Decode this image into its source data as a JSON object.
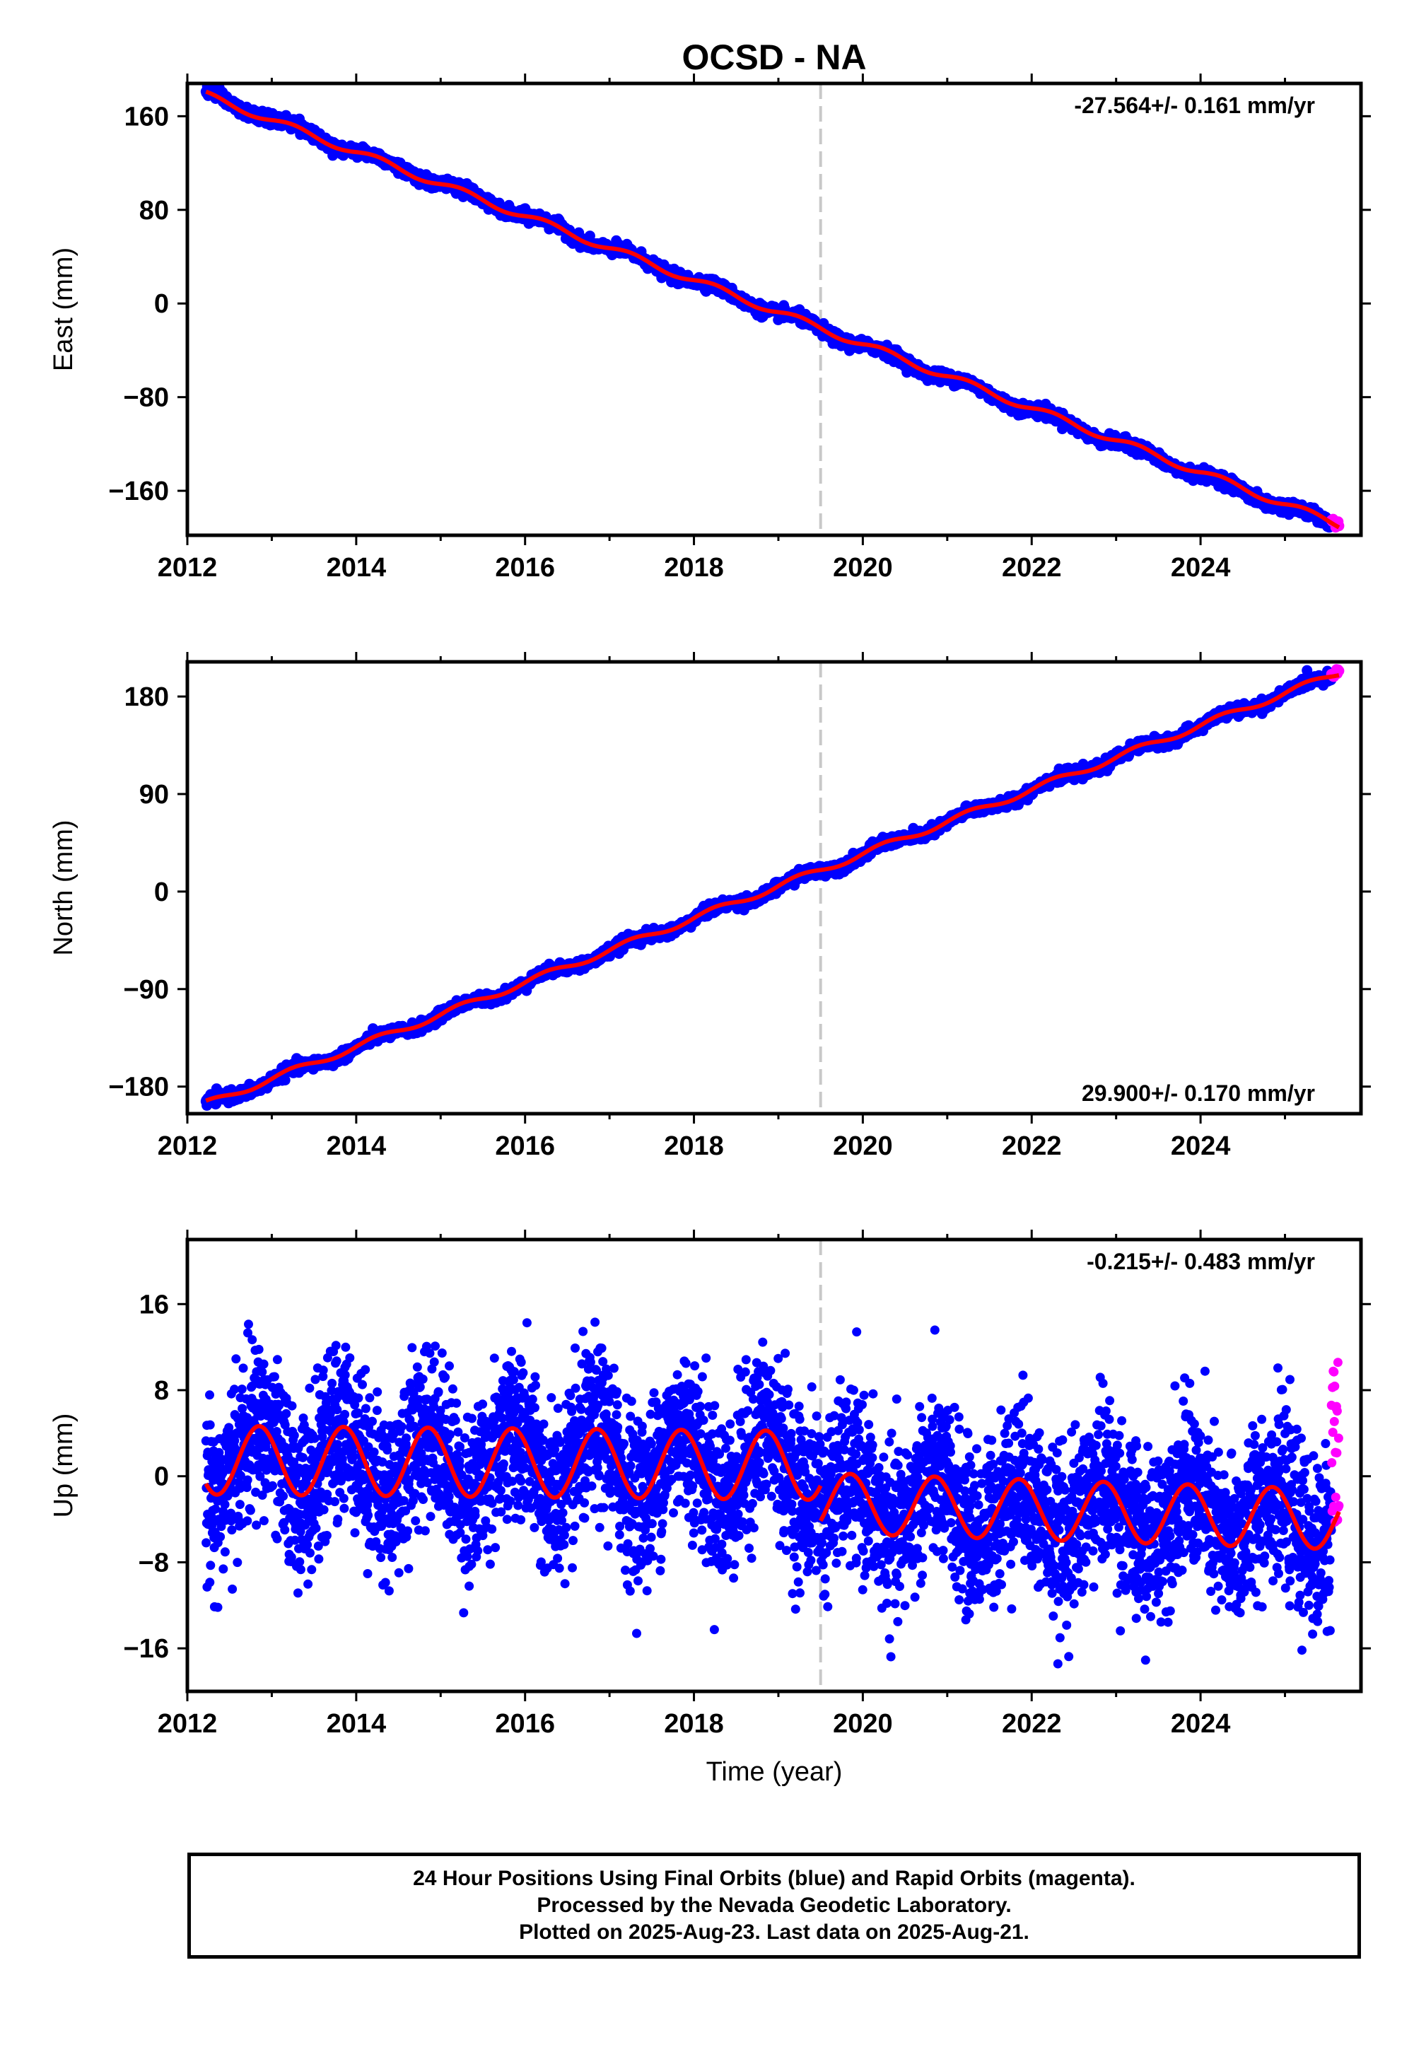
{
  "figure": {
    "title": "OCSD - NA",
    "xlabel": "Time (year)",
    "x_ticks": [
      "2012",
      "2014",
      "2016",
      "2018",
      "2020",
      "2022",
      "2024"
    ]
  },
  "colors": {
    "final_orbits": "#0000ff",
    "rapid_orbits": "#ff00ff",
    "model_fit": "#ff0000",
    "event_line": "#c8c8c8"
  },
  "caption": {
    "line1": "24 Hour Positions Using Final Orbits (blue) and Rapid Orbits (magenta).",
    "line2": "Processed by the Nevada Geodetic Laboratory.",
    "line3": "Plotted on 2025-Aug-23. Last data on 2025-Aug-21."
  },
  "chart_data": [
    {
      "type": "scatter",
      "title": "OCSD - NA",
      "ylabel": "East (mm)",
      "xlabel": "",
      "xlim": [
        2012.0,
        2025.9
      ],
      "ylim": [
        -198,
        188
      ],
      "y_ticks": [
        160,
        80,
        0,
        -80,
        -160
      ],
      "y_tick_labels": [
        "160",
        "80",
        "0",
        "−80",
        "−160"
      ],
      "velocity_label": "-27.564+/- 0.161 mm/yr",
      "velocity_position": "top-right",
      "event_line_x": 2019.5,
      "final_orbits": {
        "x_start": 2012.22,
        "x_end": 2025.55,
        "y_start": 179,
        "y_end": -189,
        "scatter": 2.5
      },
      "rapid_orbits": {
        "x_start": 2025.55,
        "x_end": 2025.64,
        "y_start": -185,
        "y_end": -190
      },
      "model_fit": {
        "x_start": 2012.22,
        "x_end": 2025.64,
        "y_start": 178,
        "y_end": -189,
        "seasonal_amplitude": 3
      }
    },
    {
      "type": "scatter",
      "title": "",
      "ylabel": "North (mm)",
      "xlabel": "",
      "xlim": [
        2012.0,
        2025.9
      ],
      "ylim": [
        -205,
        212
      ],
      "y_ticks": [
        180,
        90,
        0,
        -90,
        -180
      ],
      "y_tick_labels": [
        "180",
        "90",
        "0",
        "−90",
        "−180"
      ],
      "velocity_label": "29.900+/- 0.170 mm/yr",
      "velocity_position": "bottom-right",
      "event_line_x": 2019.5,
      "final_orbits": {
        "x_start": 2012.22,
        "x_end": 2025.55,
        "y_start": -197,
        "y_end": 199,
        "scatter": 2.5
      },
      "rapid_orbits": {
        "x_start": 2025.55,
        "x_end": 2025.64,
        "y_start": 199,
        "y_end": 203
      },
      "model_fit": {
        "x_start": 2012.22,
        "x_end": 2025.64,
        "y_start": -196,
        "y_end": 202,
        "seasonal_amplitude": 3
      }
    },
    {
      "type": "scatter",
      "title": "",
      "ylabel": "Up (mm)",
      "xlabel": "Time (year)",
      "xlim": [
        2012.0,
        2025.9
      ],
      "ylim": [
        -20,
        22
      ],
      "y_ticks": [
        16,
        8,
        0,
        -8,
        -16
      ],
      "y_tick_labels": [
        "16",
        "8",
        "0",
        "−8",
        "−16"
      ],
      "velocity_label": "-0.215+/- 0.483 mm/yr",
      "velocity_position": "top-right",
      "event_line_x": 2019.5,
      "final_orbits": {
        "x_start": 2012.22,
        "x_end": 2025.55,
        "scatter": 3.8
      },
      "rapid_orbits": {
        "x_start": 2025.55,
        "x_end": 2025.64,
        "y_min": -5,
        "y_max": 11
      },
      "model_fit": {
        "segments": [
          {
            "x_start": 2012.22,
            "x_end": 2019.5,
            "mean_start": 1.5,
            "mean_end": 1.0,
            "annual_amplitude": 3.2,
            "peak_phase": 0.85
          },
          {
            "x_start": 2019.5,
            "x_end": 2025.64,
            "mean_start": -2.5,
            "mean_end": -4.0,
            "annual_amplitude": 2.8,
            "peak_phase": 0.85
          }
        ]
      }
    }
  ]
}
